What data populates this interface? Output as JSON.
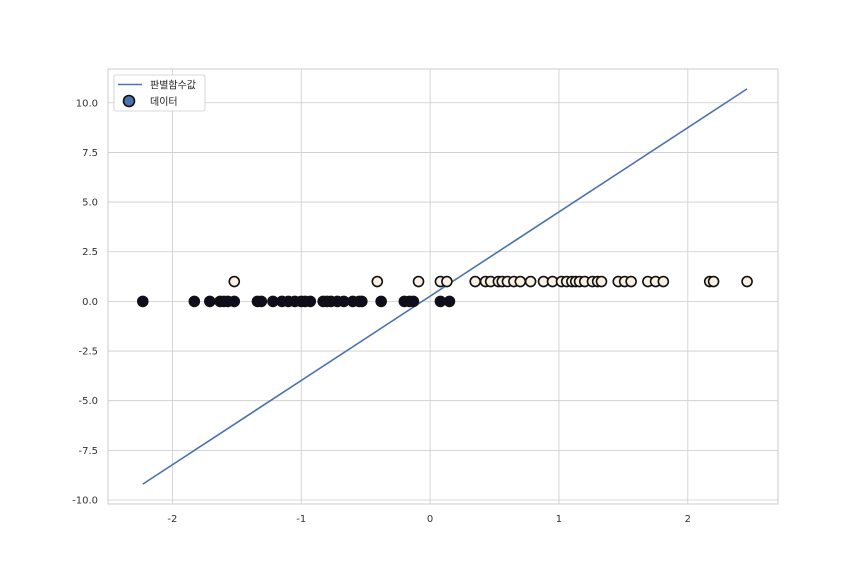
{
  "chart_data": {
    "type": "scatter",
    "xlim": [
      -2.5,
      2.7
    ],
    "ylim": [
      -10.2,
      11.7
    ],
    "grid": true,
    "legend": "top-left",
    "xticks": [
      -2,
      -1,
      0,
      1,
      2
    ],
    "xtick_labels": [
      "-2",
      "-1",
      "0",
      "1",
      "2"
    ],
    "yticks": [
      -10,
      -7.5,
      -5,
      -2.5,
      0,
      2.5,
      5,
      7.5,
      10
    ],
    "ytick_labels": [
      "-10.0",
      "-7.5",
      "-5.0",
      "-2.5",
      "0.0",
      "2.5",
      "5.0",
      "7.5",
      "10.0"
    ],
    "colors": {
      "axes_edge": "#cccccc",
      "grid": "#cccccc",
      "line": "#4c72b0",
      "class0": "#0d0d1f",
      "class1": "#fbf0e4",
      "marker_edge": "#111111"
    },
    "series": [
      {
        "name": "판별함수값",
        "kind": "line",
        "x": [
          -2.23,
          2.46
        ],
        "y": [
          -9.2,
          10.7
        ]
      },
      {
        "name": "데이터",
        "kind": "scatter",
        "points": [
          {
            "x": -2.23,
            "y": 0
          },
          {
            "x": -1.83,
            "y": 0
          },
          {
            "x": -1.71,
            "y": 0
          },
          {
            "x": -1.63,
            "y": 0
          },
          {
            "x": -1.6,
            "y": 0
          },
          {
            "x": -1.57,
            "y": 0
          },
          {
            "x": -1.52,
            "y": 0
          },
          {
            "x": -1.34,
            "y": 0
          },
          {
            "x": -1.31,
            "y": 0
          },
          {
            "x": -1.22,
            "y": 0
          },
          {
            "x": -1.15,
            "y": 0
          },
          {
            "x": -1.1,
            "y": 0
          },
          {
            "x": -1.05,
            "y": 0
          },
          {
            "x": -1.0,
            "y": 0
          },
          {
            "x": -0.97,
            "y": 0
          },
          {
            "x": -0.93,
            "y": 0
          },
          {
            "x": -0.83,
            "y": 0
          },
          {
            "x": -0.8,
            "y": 0
          },
          {
            "x": -0.77,
            "y": 0
          },
          {
            "x": -0.72,
            "y": 0
          },
          {
            "x": -0.67,
            "y": 0
          },
          {
            "x": -0.6,
            "y": 0
          },
          {
            "x": -0.55,
            "y": 0
          },
          {
            "x": -0.53,
            "y": 0
          },
          {
            "x": -0.38,
            "y": 0
          },
          {
            "x": -0.2,
            "y": 0
          },
          {
            "x": -0.16,
            "y": 0
          },
          {
            "x": -0.13,
            "y": 0
          },
          {
            "x": 0.08,
            "y": 0
          },
          {
            "x": 0.15,
            "y": 0
          },
          {
            "x": -1.52,
            "y": 1
          },
          {
            "x": -0.41,
            "y": 1
          },
          {
            "x": -0.09,
            "y": 1
          },
          {
            "x": 0.08,
            "y": 1
          },
          {
            "x": 0.13,
            "y": 1
          },
          {
            "x": 0.35,
            "y": 1
          },
          {
            "x": 0.43,
            "y": 1
          },
          {
            "x": 0.47,
            "y": 1
          },
          {
            "x": 0.53,
            "y": 1
          },
          {
            "x": 0.56,
            "y": 1
          },
          {
            "x": 0.6,
            "y": 1
          },
          {
            "x": 0.65,
            "y": 1
          },
          {
            "x": 0.7,
            "y": 1
          },
          {
            "x": 0.78,
            "y": 1
          },
          {
            "x": 0.88,
            "y": 1
          },
          {
            "x": 0.95,
            "y": 1
          },
          {
            "x": 1.02,
            "y": 1
          },
          {
            "x": 1.06,
            "y": 1
          },
          {
            "x": 1.1,
            "y": 1
          },
          {
            "x": 1.13,
            "y": 1
          },
          {
            "x": 1.16,
            "y": 1
          },
          {
            "x": 1.2,
            "y": 1
          },
          {
            "x": 1.26,
            "y": 1
          },
          {
            "x": 1.3,
            "y": 1
          },
          {
            "x": 1.33,
            "y": 1
          },
          {
            "x": 1.46,
            "y": 1
          },
          {
            "x": 1.51,
            "y": 1
          },
          {
            "x": 1.56,
            "y": 1
          },
          {
            "x": 1.69,
            "y": 1
          },
          {
            "x": 1.75,
            "y": 1
          },
          {
            "x": 1.81,
            "y": 1
          },
          {
            "x": 2.17,
            "y": 1
          },
          {
            "x": 2.2,
            "y": 1
          },
          {
            "x": 2.46,
            "y": 1
          }
        ]
      }
    ]
  }
}
